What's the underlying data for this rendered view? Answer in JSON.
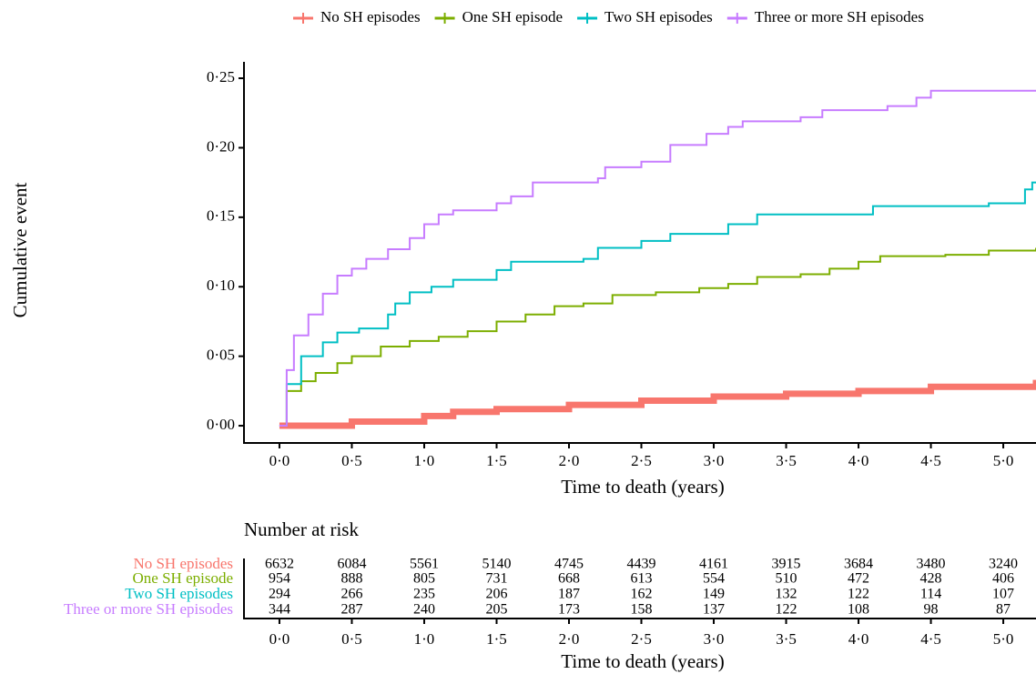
{
  "chart_data": {
    "type": "line",
    "step": true,
    "y_label": "Cumulative event",
    "x_label": "Time to death (years)",
    "xlim": [
      -0.245,
      5.226
    ],
    "ylim": [
      -0.0124,
      0.2618
    ],
    "xticks": [
      {
        "value": 0,
        "label": "0·0"
      },
      {
        "value": 0.5,
        "label": "0·5"
      },
      {
        "value": 1,
        "label": "1·0"
      },
      {
        "value": 1.5,
        "label": "1·5"
      },
      {
        "value": 2,
        "label": "2·0"
      },
      {
        "value": 2.5,
        "label": "2·5"
      },
      {
        "value": 3,
        "label": "3·0"
      },
      {
        "value": 3.5,
        "label": "3·5"
      },
      {
        "value": 4,
        "label": "4·0"
      },
      {
        "value": 4.5,
        "label": "4·5"
      },
      {
        "value": 5,
        "label": "5·0"
      }
    ],
    "yticks": [
      {
        "value": 0,
        "label": "0·00"
      },
      {
        "value": 0.05,
        "label": "0·05"
      },
      {
        "value": 0.1,
        "label": "0·10"
      },
      {
        "value": 0.15,
        "label": "0·15"
      },
      {
        "value": 0.2,
        "label": "0·20"
      },
      {
        "value": 0.25,
        "label": "0·25"
      }
    ],
    "series": [
      {
        "name": "No SH episodes",
        "color": "#F8766D",
        "x": [
          0,
          0.5,
          1.0,
          1.2,
          1.5,
          2.0,
          2.5,
          3.0,
          3.5,
          4.0,
          4.5,
          5.226
        ],
        "values": [
          0,
          0.003,
          0.007,
          0.01,
          0.012,
          0.015,
          0.018,
          0.021,
          0.023,
          0.025,
          0.028,
          0.033
        ]
      },
      {
        "name": "One SH episode",
        "color": "#7CAE00",
        "x": [
          0,
          0.05,
          0.15,
          0.25,
          0.4,
          0.5,
          0.7,
          0.9,
          1.1,
          1.3,
          1.5,
          1.7,
          1.9,
          2.1,
          2.3,
          2.6,
          2.9,
          3.1,
          3.3,
          3.6,
          3.8,
          4.0,
          4.15,
          4.6,
          4.9,
          5.226
        ],
        "values": [
          0,
          0.025,
          0.032,
          0.038,
          0.045,
          0.05,
          0.057,
          0.061,
          0.064,
          0.068,
          0.075,
          0.08,
          0.086,
          0.088,
          0.094,
          0.096,
          0.099,
          0.102,
          0.107,
          0.109,
          0.113,
          0.118,
          0.122,
          0.123,
          0.126,
          0.128
        ]
      },
      {
        "name": "Two SH episodes",
        "color": "#00BFC4",
        "x": [
          0,
          0.05,
          0.15,
          0.3,
          0.4,
          0.55,
          0.75,
          0.8,
          0.9,
          1.05,
          1.2,
          1.5,
          1.6,
          2.1,
          2.2,
          2.5,
          2.7,
          3.1,
          3.3,
          4.1,
          4.9,
          5.15,
          5.2,
          5.226
        ],
        "values": [
          0,
          0.03,
          0.05,
          0.06,
          0.067,
          0.07,
          0.08,
          0.088,
          0.096,
          0.1,
          0.105,
          0.112,
          0.118,
          0.12,
          0.128,
          0.133,
          0.138,
          0.145,
          0.152,
          0.158,
          0.16,
          0.17,
          0.175,
          0.175
        ]
      },
      {
        "name": "Three or more SH episodes",
        "color": "#C77CFF",
        "x": [
          0,
          0.05,
          0.1,
          0.2,
          0.3,
          0.4,
          0.5,
          0.6,
          0.75,
          0.9,
          1.0,
          1.1,
          1.2,
          1.5,
          1.6,
          1.75,
          2.2,
          2.25,
          2.5,
          2.7,
          2.95,
          3.1,
          3.2,
          3.6,
          3.75,
          4.2,
          4.4,
          4.5,
          5.226
        ],
        "values": [
          0,
          0.04,
          0.065,
          0.08,
          0.095,
          0.108,
          0.113,
          0.12,
          0.127,
          0.135,
          0.145,
          0.152,
          0.155,
          0.16,
          0.165,
          0.175,
          0.178,
          0.186,
          0.19,
          0.202,
          0.21,
          0.215,
          0.219,
          0.222,
          0.227,
          0.23,
          0.236,
          0.241,
          0.241
        ]
      }
    ],
    "risk_table": {
      "title": "Number at risk",
      "counts": [
        [
          6632,
          6084,
          5561,
          5140,
          4745,
          4439,
          4161,
          3915,
          3684,
          3480,
          3240
        ],
        [
          954,
          888,
          805,
          731,
          668,
          613,
          554,
          510,
          472,
          428,
          406
        ],
        [
          294,
          266,
          235,
          206,
          187,
          162,
          149,
          132,
          122,
          114,
          107
        ],
        [
          344,
          287,
          240,
          205,
          173,
          158,
          137,
          122,
          108,
          98,
          87
        ]
      ]
    }
  }
}
